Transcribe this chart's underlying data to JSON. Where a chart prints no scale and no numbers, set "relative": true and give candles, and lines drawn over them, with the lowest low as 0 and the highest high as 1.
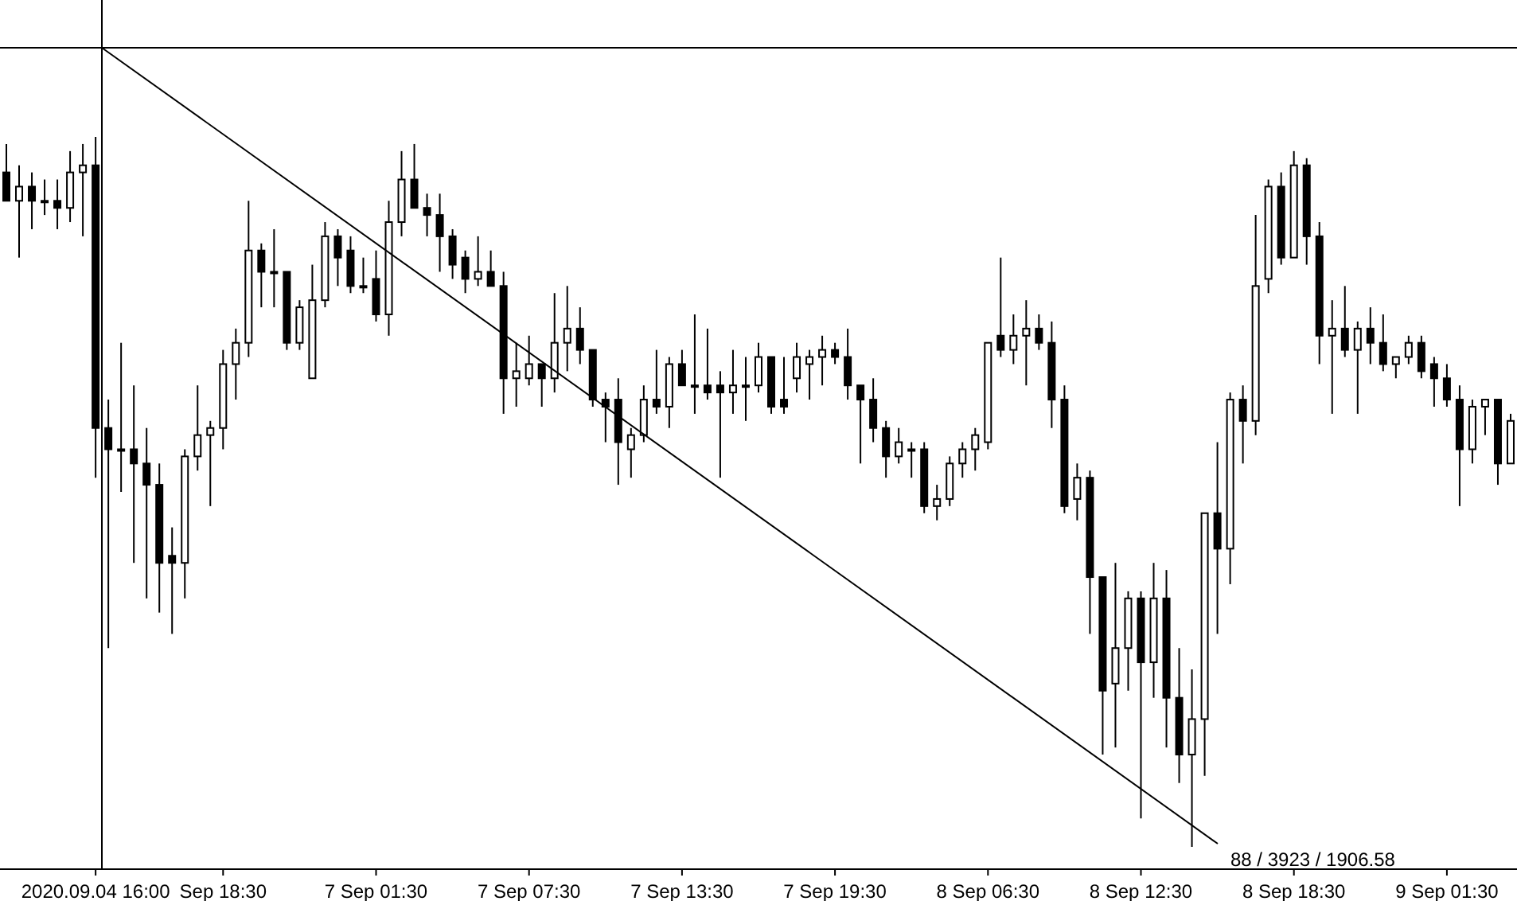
{
  "chart_data": {
    "type": "candlestick",
    "relative": true,
    "color": "#000000",
    "categories": [
      null,
      null,
      null,
      null,
      null,
      null,
      null,
      "2020.09.04 16:00",
      null,
      null,
      null,
      null,
      null,
      null,
      null,
      null,
      null,
      "Sep 18:30",
      null,
      null,
      null,
      null,
      null,
      null,
      null,
      null,
      null,
      null,
      null,
      "7 Sep 01:30",
      null,
      null,
      null,
      null,
      null,
      null,
      null,
      null,
      null,
      null,
      null,
      "7 Sep 07:30",
      null,
      null,
      null,
      null,
      null,
      null,
      null,
      null,
      null,
      null,
      null,
      "7 Sep 13:30",
      null,
      null,
      null,
      null,
      null,
      null,
      null,
      null,
      null,
      null,
      null,
      "7 Sep 19:30",
      null,
      null,
      null,
      null,
      null,
      null,
      null,
      null,
      null,
      null,
      null,
      "8 Sep 06:30",
      null,
      null,
      null,
      null,
      null,
      null,
      null,
      null,
      null,
      null,
      null,
      "8 Sep 12:30",
      null,
      null,
      null,
      null,
      null,
      null,
      null,
      null,
      null,
      null,
      null,
      "8 Sep 18:30",
      null,
      null,
      null,
      null,
      null,
      null,
      null,
      null,
      null,
      null,
      null,
      "9 Sep 01:30",
      null,
      null,
      null,
      null,
      null
    ],
    "ohlc": [
      [
        0.95,
        0.99,
        0.91,
        0.91
      ],
      [
        0.91,
        0.96,
        0.83,
        0.93
      ],
      [
        0.93,
        0.95,
        0.87,
        0.91
      ],
      [
        0.91,
        0.94,
        0.89,
        0.91
      ],
      [
        0.91,
        0.94,
        0.87,
        0.9
      ],
      [
        0.9,
        0.98,
        0.88,
        0.95
      ],
      [
        0.95,
        0.99,
        0.86,
        0.96
      ],
      [
        0.96,
        1,
        0.52,
        0.59
      ],
      [
        0.59,
        0.63,
        0.28,
        0.56
      ],
      [
        0.56,
        0.71,
        0.5,
        0.56
      ],
      [
        0.56,
        0.65,
        0.4,
        0.54
      ],
      [
        0.54,
        0.59,
        0.35,
        0.51
      ],
      [
        0.51,
        0.54,
        0.33,
        0.4
      ],
      [
        0.41,
        0.45,
        0.3,
        0.4
      ],
      [
        0.4,
        0.56,
        0.35,
        0.55
      ],
      [
        0.55,
        0.65,
        0.53,
        0.58
      ],
      [
        0.58,
        0.6,
        0.48,
        0.59
      ],
      [
        0.59,
        0.7,
        0.56,
        0.68
      ],
      [
        0.68,
        0.73,
        0.63,
        0.71
      ],
      [
        0.71,
        0.91,
        0.69,
        0.84
      ],
      [
        0.84,
        0.85,
        0.76,
        0.81
      ],
      [
        0.81,
        0.87,
        0.76,
        0.81
      ],
      [
        0.81,
        0.81,
        0.7,
        0.71
      ],
      [
        0.71,
        0.77,
        0.7,
        0.76
      ],
      [
        0.66,
        0.82,
        0.66,
        0.77
      ],
      [
        0.77,
        0.88,
        0.76,
        0.86
      ],
      [
        0.86,
        0.87,
        0.79,
        0.83
      ],
      [
        0.84,
        0.86,
        0.78,
        0.79
      ],
      [
        0.79,
        0.83,
        0.78,
        0.79
      ],
      [
        0.8,
        0.84,
        0.74,
        0.75
      ],
      [
        0.75,
        0.91,
        0.72,
        0.88
      ],
      [
        0.88,
        0.98,
        0.86,
        0.94
      ],
      [
        0.94,
        0.99,
        0.9,
        0.9
      ],
      [
        0.9,
        0.92,
        0.86,
        0.89
      ],
      [
        0.89,
        0.92,
        0.81,
        0.86
      ],
      [
        0.86,
        0.87,
        0.8,
        0.82
      ],
      [
        0.83,
        0.84,
        0.78,
        0.8
      ],
      [
        0.8,
        0.86,
        0.79,
        0.81
      ],
      [
        0.81,
        0.84,
        0.79,
        0.79
      ],
      [
        0.79,
        0.81,
        0.61,
        0.66
      ],
      [
        0.66,
        0.71,
        0.62,
        0.67
      ],
      [
        0.66,
        0.72,
        0.65,
        0.68
      ],
      [
        0.68,
        0.68,
        0.62,
        0.66
      ],
      [
        0.66,
        0.78,
        0.64,
        0.71
      ],
      [
        0.71,
        0.79,
        0.67,
        0.73
      ],
      [
        0.73,
        0.76,
        0.68,
        0.7
      ],
      [
        0.7,
        0.7,
        0.62,
        0.63
      ],
      [
        0.63,
        0.64,
        0.57,
        0.62
      ],
      [
        0.63,
        0.66,
        0.51,
        0.57
      ],
      [
        0.56,
        0.59,
        0.52,
        0.58
      ],
      [
        0.58,
        0.65,
        0.57,
        0.63
      ],
      [
        0.63,
        0.7,
        0.61,
        0.62
      ],
      [
        0.62,
        0.69,
        0.59,
        0.68
      ],
      [
        0.68,
        0.7,
        0.65,
        0.65
      ],
      [
        0.65,
        0.75,
        0.61,
        0.65
      ],
      [
        0.65,
        0.73,
        0.63,
        0.64
      ],
      [
        0.65,
        0.67,
        0.52,
        0.64
      ],
      [
        0.64,
        0.7,
        0.61,
        0.65
      ],
      [
        0.65,
        0.69,
        0.6,
        0.65
      ],
      [
        0.65,
        0.71,
        0.64,
        0.69
      ],
      [
        0.69,
        0.69,
        0.61,
        0.62
      ],
      [
        0.63,
        0.69,
        0.61,
        0.62
      ],
      [
        0.66,
        0.71,
        0.64,
        0.69
      ],
      [
        0.68,
        0.7,
        0.63,
        0.69
      ],
      [
        0.69,
        0.72,
        0.65,
        0.7
      ],
      [
        0.7,
        0.71,
        0.68,
        0.69
      ],
      [
        0.69,
        0.73,
        0.63,
        0.65
      ],
      [
        0.65,
        0.65,
        0.54,
        0.63
      ],
      [
        0.63,
        0.66,
        0.57,
        0.59
      ],
      [
        0.59,
        0.6,
        0.52,
        0.55
      ],
      [
        0.55,
        0.59,
        0.54,
        0.57
      ],
      [
        0.56,
        0.57,
        0.52,
        0.56
      ],
      [
        0.56,
        0.57,
        0.47,
        0.48
      ],
      [
        0.48,
        0.51,
        0.46,
        0.49
      ],
      [
        0.49,
        0.55,
        0.48,
        0.54
      ],
      [
        0.54,
        0.57,
        0.52,
        0.56
      ],
      [
        0.56,
        0.59,
        0.53,
        0.58
      ],
      [
        0.57,
        0.71,
        0.56,
        0.71
      ],
      [
        0.72,
        0.83,
        0.69,
        0.7
      ],
      [
        0.7,
        0.75,
        0.68,
        0.72
      ],
      [
        0.72,
        0.77,
        0.65,
        0.73
      ],
      [
        0.73,
        0.75,
        0.7,
        0.71
      ],
      [
        0.71,
        0.74,
        0.59,
        0.63
      ],
      [
        0.63,
        0.65,
        0.47,
        0.48
      ],
      [
        0.49,
        0.54,
        0.46,
        0.52
      ],
      [
        0.52,
        0.53,
        0.3,
        0.38
      ],
      [
        0.38,
        0.38,
        0.13,
        0.22
      ],
      [
        0.23,
        0.4,
        0.14,
        0.28
      ],
      [
        0.28,
        0.36,
        0.22,
        0.35
      ],
      [
        0.35,
        0.36,
        0.04,
        0.26
      ],
      [
        0.26,
        0.4,
        0.21,
        0.35
      ],
      [
        0.35,
        0.39,
        0.14,
        0.21
      ],
      [
        0.21,
        0.28,
        0.09,
        0.13
      ],
      [
        0.13,
        0.25,
        0,
        0.18
      ],
      [
        0.18,
        0.47,
        0.1,
        0.47
      ],
      [
        0.47,
        0.57,
        0.3,
        0.42
      ],
      [
        0.42,
        0.64,
        0.37,
        0.63
      ],
      [
        0.63,
        0.65,
        0.54,
        0.6
      ],
      [
        0.6,
        0.89,
        0.58,
        0.79
      ],
      [
        0.8,
        0.94,
        0.78,
        0.93
      ],
      [
        0.93,
        0.95,
        0.82,
        0.83
      ],
      [
        0.83,
        0.98,
        0.83,
        0.96
      ],
      [
        0.96,
        0.97,
        0.82,
        0.86
      ],
      [
        0.86,
        0.88,
        0.68,
        0.72
      ],
      [
        0.72,
        0.77,
        0.61,
        0.73
      ],
      [
        0.73,
        0.79,
        0.69,
        0.7
      ],
      [
        0.7,
        0.74,
        0.61,
        0.73
      ],
      [
        0.73,
        0.76,
        0.68,
        0.71
      ],
      [
        0.71,
        0.75,
        0.67,
        0.68
      ],
      [
        0.68,
        0.69,
        0.66,
        0.69
      ],
      [
        0.69,
        0.72,
        0.68,
        0.71
      ],
      [
        0.71,
        0.72,
        0.66,
        0.67
      ],
      [
        0.68,
        0.69,
        0.62,
        0.66
      ],
      [
        0.66,
        0.68,
        0.62,
        0.63
      ],
      [
        0.63,
        0.65,
        0.48,
        0.56
      ],
      [
        0.56,
        0.63,
        0.54,
        0.62
      ],
      [
        0.62,
        0.63,
        0.58,
        0.63
      ],
      [
        0.63,
        0.63,
        0.51,
        0.54
      ],
      [
        0.54,
        0.61,
        0.54,
        0.6
      ]
    ],
    "annotations": [
      "88 / 3923 / 1906.58"
    ]
  }
}
